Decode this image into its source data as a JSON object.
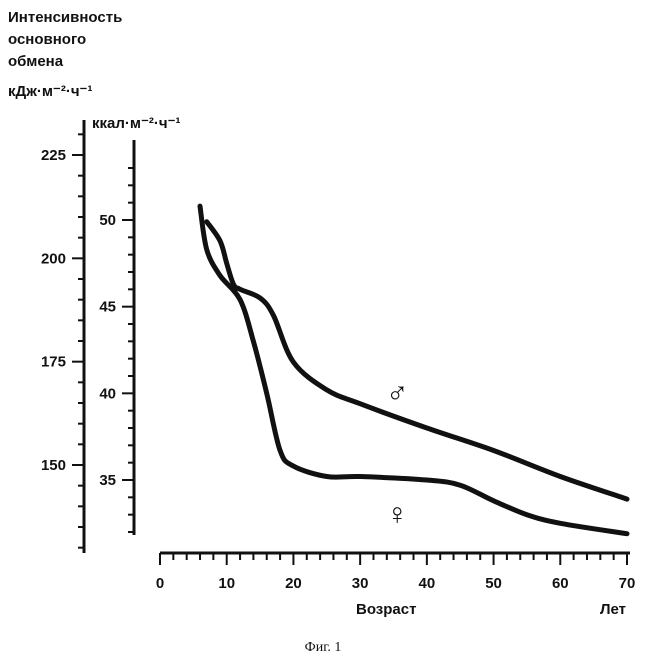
{
  "chart_data": {
    "type": "line",
    "title_lines": [
      "Интенсивность",
      "основного",
      "обмена"
    ],
    "y_unit_kj": "кДж·м⁻²·ч⁻¹",
    "y_unit_kcal": "ккал·м⁻²·ч⁻¹",
    "xlabel": "Возраст",
    "xunit": "Лет",
    "caption": "Фиг. 1",
    "xlim": [
      0,
      70
    ],
    "ylim_kcal": [
      31.5,
      53
    ],
    "x_ticks": [
      0,
      10,
      20,
      30,
      40,
      50,
      60,
      70
    ],
    "y_ticks_kj": [
      150,
      175,
      200,
      225
    ],
    "y_ticks_kcal": [
      35,
      40,
      45,
      50
    ],
    "series": [
      {
        "name": "♂",
        "x": [
          7,
          9,
          10,
          11,
          12,
          15,
          17,
          20,
          25,
          30,
          40,
          50,
          60,
          70
        ],
        "y": [
          49.9,
          48.8,
          47.5,
          46.3,
          46.0,
          45.5,
          44.5,
          41.8,
          40.2,
          39.4,
          38.0,
          36.7,
          35.2,
          33.9
        ]
      },
      {
        "name": "♀",
        "x": [
          6,
          7,
          9,
          12,
          14,
          16,
          18,
          20,
          25,
          30,
          40,
          45,
          50,
          55,
          60,
          70
        ],
        "y": [
          50.8,
          48.3,
          46.8,
          45.4,
          43.0,
          40.0,
          36.7,
          35.8,
          35.2,
          35.2,
          35.0,
          34.7,
          33.8,
          33.0,
          32.5,
          31.9
        ]
      }
    ]
  }
}
